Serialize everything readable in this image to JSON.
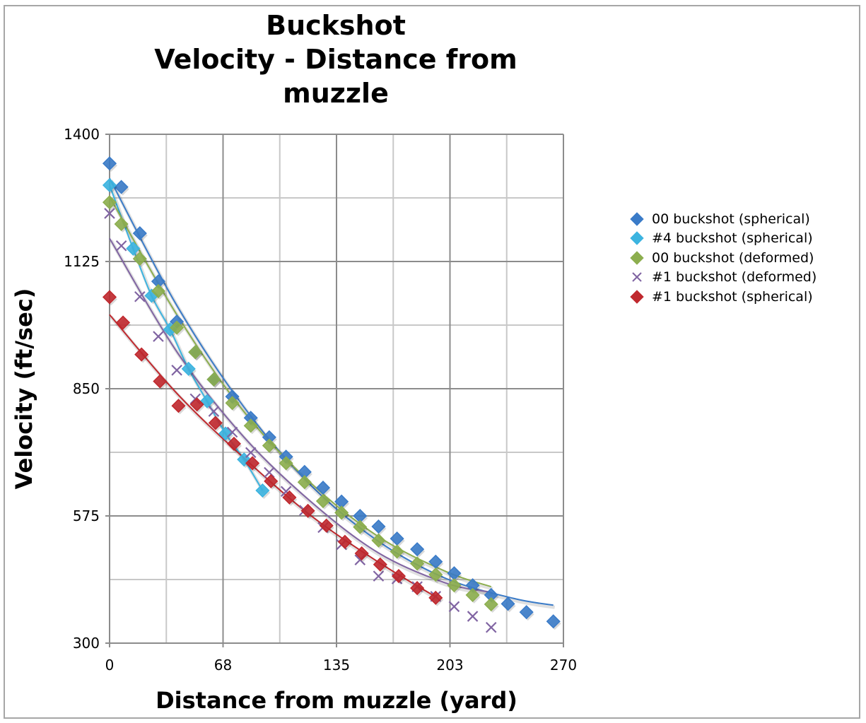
{
  "chart_data": {
    "type": "scatter",
    "title_lines": [
      "Buckshot",
      "Velocity - Distance from",
      "muzzle"
    ],
    "xlabel": "Distance from muzzle (yard)",
    "ylabel": "Velocity (ft/sec)",
    "xlim": [
      0,
      270
    ],
    "ylim": [
      300,
      1400
    ],
    "x_ticks": [
      "0",
      "68",
      "135",
      "203",
      "270"
    ],
    "x_tick_values": [
      0,
      67.5,
      135,
      202.5,
      270
    ],
    "x_minor_gridlines": [
      33.75,
      101.25,
      168.75,
      236.25
    ],
    "y_ticks": [
      "1400",
      "1125",
      "850",
      "575",
      "300"
    ],
    "y_tick_values": [
      1400,
      1125,
      850,
      575,
      300
    ],
    "y_minor_gridlines": [
      1262.5,
      987.5,
      712.5,
      437.5
    ],
    "grid": true,
    "legend_position": "right",
    "series": [
      {
        "name": "00 buckshot (spherical)",
        "marker": "diamond",
        "color": "#3a7bc8",
        "x": [
          0,
          7,
          18,
          29,
          40,
          51,
          62,
          73,
          84,
          95,
          105,
          116,
          127,
          138,
          149,
          160,
          171,
          183,
          194,
          205,
          216,
          227,
          237,
          248,
          264
        ],
        "y": [
          1337,
          1286,
          1186,
          1082,
          995,
          929,
          870,
          833,
          787,
          745,
          703,
          670,
          636,
          606,
          575,
          552,
          526,
          503,
          476,
          451,
          425,
          404,
          385,
          367,
          347
        ],
        "trend": {
          "type": "poly2",
          "x_range": [
            0,
            264
          ],
          "points": [
            [
              0,
              1305
            ],
            [
              40,
              1030
            ],
            [
              80,
              810
            ],
            [
              120,
              640
            ],
            [
              160,
              520
            ],
            [
              200,
              440
            ],
            [
              240,
              397
            ],
            [
              264,
              382
            ]
          ]
        }
      },
      {
        "name": "#4 buckshot (spherical)",
        "marker": "diamond",
        "color": "#3cb4e0",
        "x": [
          0,
          14,
          25,
          36,
          47,
          58,
          69,
          80,
          91
        ],
        "y": [
          1290,
          1153,
          1051,
          978,
          893,
          823,
          753,
          697,
          630
        ],
        "trend": {
          "type": "poly2",
          "x_range": [
            0,
            91
          ],
          "points": [
            [
              0,
              1290
            ],
            [
              14,
              1153
            ],
            [
              25,
              1051
            ],
            [
              36,
              978
            ],
            [
              47,
              893
            ],
            [
              58,
              823
            ],
            [
              69,
              753
            ],
            [
              80,
              697
            ],
            [
              91,
              630
            ]
          ]
        }
      },
      {
        "name": "00 buckshot (deformed)",
        "marker": "diamond",
        "color": "#8cae4e",
        "x": [
          0,
          7,
          18,
          29,
          40,
          51,
          62,
          73,
          84,
          95,
          105,
          116,
          127,
          138,
          149,
          160,
          171,
          183,
          194,
          205,
          216,
          227
        ],
        "y": [
          1253,
          1206,
          1131,
          1061,
          982,
          929,
          870,
          819,
          770,
          727,
          689,
          648,
          607,
          582,
          551,
          522,
          498,
          472,
          448,
          425,
          404,
          384
        ],
        "trend": {
          "type": "poly2",
          "x_range": [
            0,
            227
          ],
          "points": [
            [
              0,
              1265
            ],
            [
              40,
              1010
            ],
            [
              80,
              800
            ],
            [
              120,
              645
            ],
            [
              160,
              530
            ],
            [
              200,
              455
            ],
            [
              227,
              422
            ]
          ]
        }
      },
      {
        "name": "#1 buckshot (deformed)",
        "marker": "x",
        "color": "#8064a2",
        "x": [
          0,
          7,
          18,
          29,
          40,
          51,
          62,
          73,
          84,
          95,
          105,
          116,
          127,
          138,
          149,
          160,
          171,
          183,
          194,
          205,
          216,
          227
        ],
        "y": [
          1229,
          1159,
          1049,
          963,
          890,
          828,
          801,
          756,
          712,
          669,
          628,
          587,
          550,
          513,
          480,
          445,
          439,
          422,
          401,
          379,
          358,
          334
        ],
        "trend": {
          "type": "poly2",
          "x_range": [
            0,
            227
          ],
          "points": [
            [
              0,
              1175
            ],
            [
              40,
              930
            ],
            [
              80,
              745
            ],
            [
              120,
              605
            ],
            [
              160,
              495
            ],
            [
              200,
              430
            ],
            [
              227,
              410
            ]
          ]
        }
      },
      {
        "name": "#1 buckshot (spherical)",
        "marker": "diamond",
        "color": "#c0282d",
        "x": [
          0,
          8,
          19,
          30,
          41,
          52,
          63,
          74,
          85,
          96,
          107,
          118,
          129,
          140,
          150,
          161,
          172,
          183,
          194
        ],
        "y": [
          1048,
          993,
          924,
          866,
          813,
          816,
          776,
          731,
          689,
          650,
          615,
          586,
          554,
          519,
          494,
          470,
          445,
          419,
          398
        ],
        "trend": {
          "type": "poly2",
          "x_range": [
            0,
            194
          ],
          "points": [
            [
              0,
              1010
            ],
            [
              40,
              840
            ],
            [
              80,
              700
            ],
            [
              120,
              575
            ],
            [
              160,
              475
            ],
            [
              194,
              400
            ]
          ]
        }
      }
    ]
  }
}
